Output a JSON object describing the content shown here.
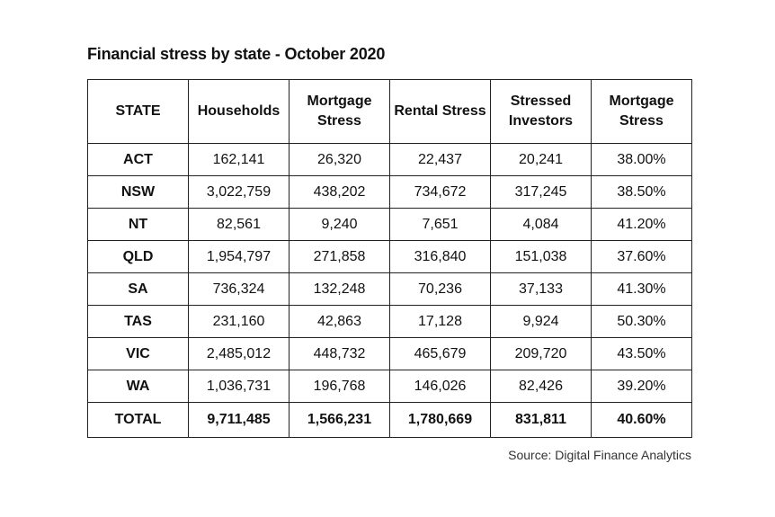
{
  "title": "Financial stress by state - October 2020",
  "source": "Source: Digital Finance Analytics",
  "chart_data": {
    "type": "table",
    "title": "Financial stress by state - October 2020",
    "columns": [
      "STATE",
      "Households",
      "Mortgage Stress",
      "Rental Stress",
      "Stressed Investors",
      "Mortgage Stress"
    ],
    "rows": [
      [
        "ACT",
        "162,141",
        "26,320",
        "22,437",
        "20,241",
        "38.00%"
      ],
      [
        "NSW",
        "3,022,759",
        "438,202",
        "734,672",
        "317,245",
        "38.50%"
      ],
      [
        "NT",
        "82,561",
        "9,240",
        "7,651",
        "4,084",
        "41.20%"
      ],
      [
        "QLD",
        "1,954,797",
        "271,858",
        "316,840",
        "151,038",
        "37.60%"
      ],
      [
        "SA",
        "736,324",
        "132,248",
        "70,236",
        "37,133",
        "41.30%"
      ],
      [
        "TAS",
        "231,160",
        "42,863",
        "17,128",
        "9,924",
        "50.30%"
      ],
      [
        "VIC",
        "2,485,012",
        "448,732",
        "465,679",
        "209,720",
        "43.50%"
      ],
      [
        "WA",
        "1,036,731",
        "196,768",
        "146,026",
        "82,426",
        "39.20%"
      ]
    ],
    "total": [
      "TOTAL",
      "9,711,485",
      "1,566,231",
      "1,780,669",
      "831,811",
      "40.60%"
    ]
  }
}
